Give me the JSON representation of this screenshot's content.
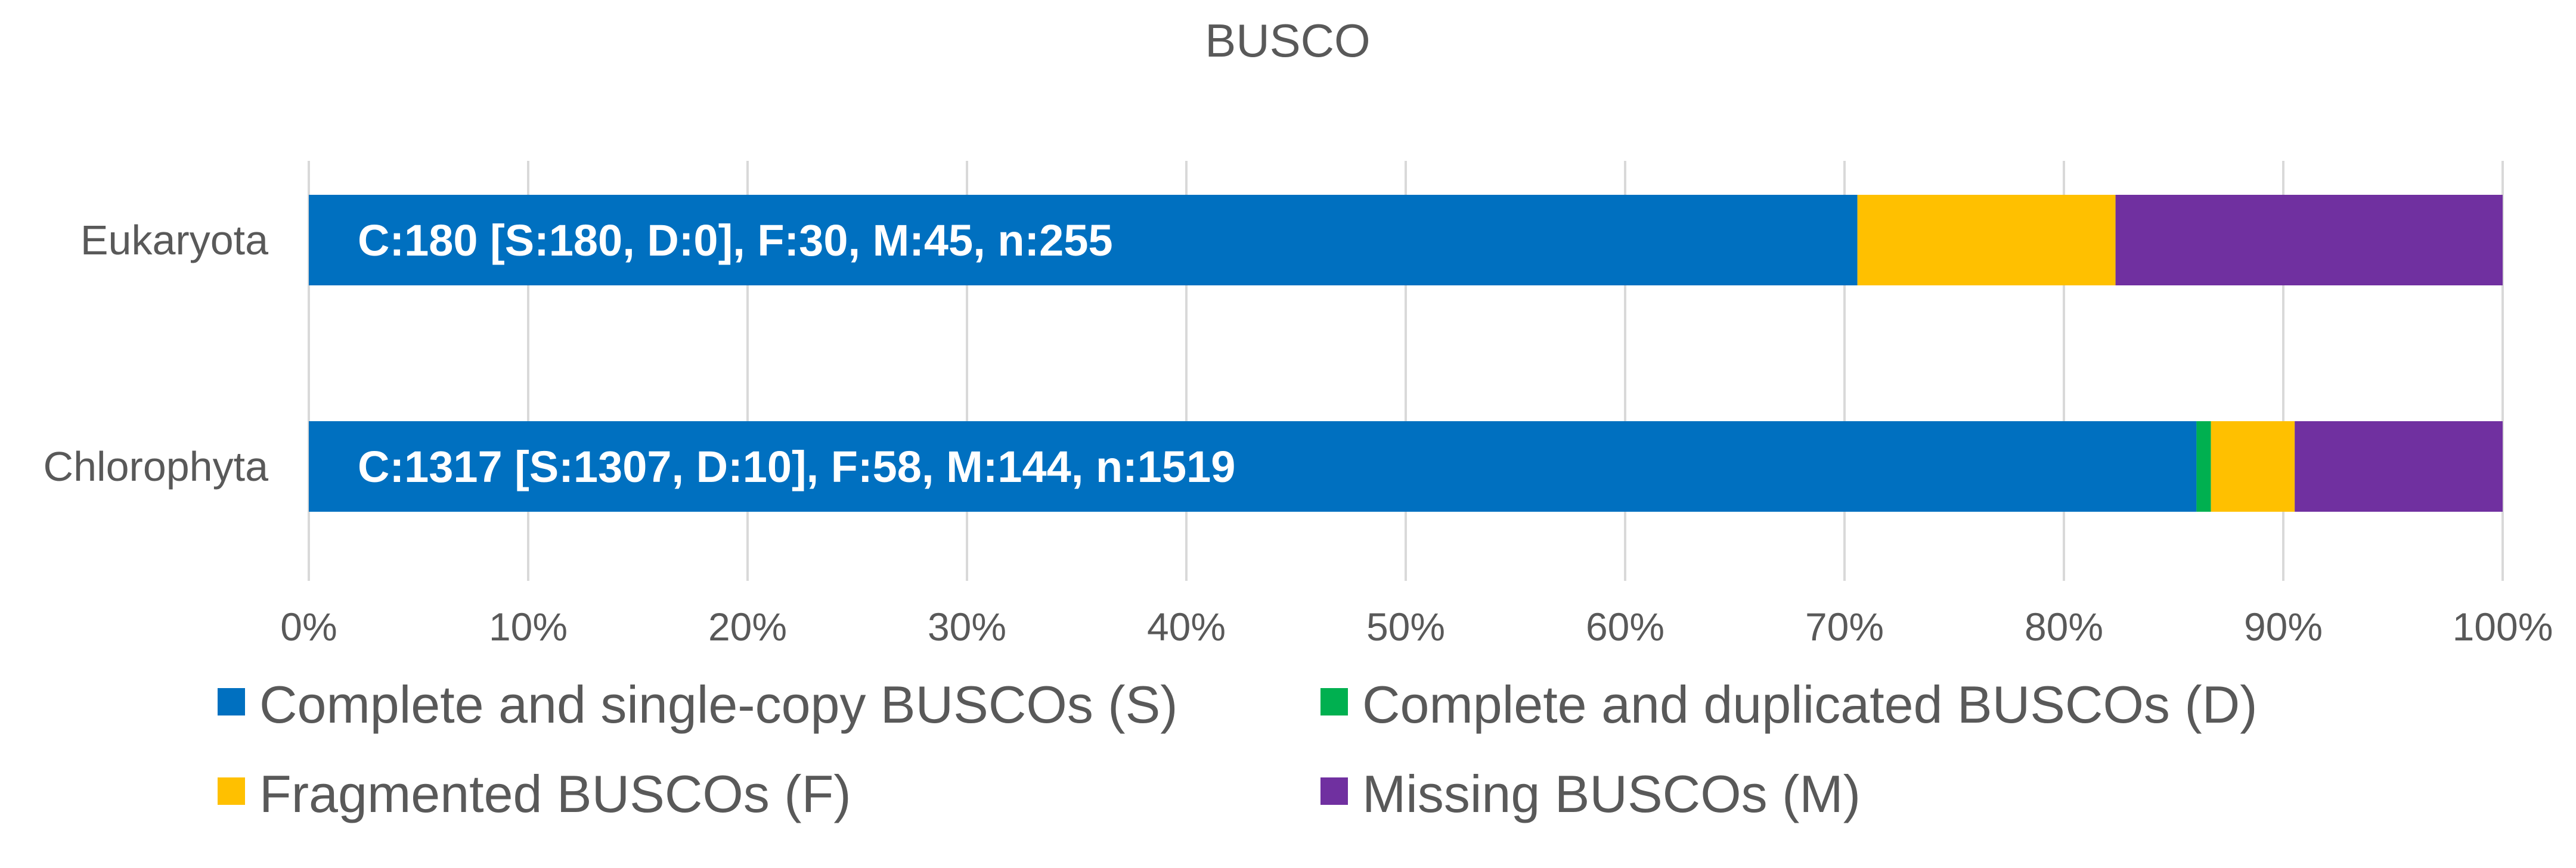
{
  "chart_data": {
    "type": "bar",
    "orientation": "horizontal",
    "stacked": "percent",
    "title": "BUSCO",
    "categories": [
      "Eukaryota",
      "Chlorophyta"
    ],
    "series": [
      {
        "name": "Complete and single-copy BUSCOs (S)",
        "values": [
          180,
          1307
        ],
        "color": "#0070C0"
      },
      {
        "name": "Complete and duplicated BUSCOs (D)",
        "values": [
          0,
          10
        ],
        "color": "#00B050"
      },
      {
        "name": "Fragmented BUSCOs (F)",
        "values": [
          30,
          58
        ],
        "color": "#FFC000"
      },
      {
        "name": "Missing BUSCOs (M)",
        "values": [
          45,
          144
        ],
        "color": "#7030A0"
      }
    ],
    "data_labels": [
      "C:180 [S:180, D:0], F:30, M:45, n:255",
      "C:1317 [S:1307, D:10], F:58, M:144, n:1519"
    ],
    "xlim": [
      0,
      100
    ],
    "x_ticks": [
      "0%",
      "10%",
      "20%",
      "30%",
      "40%",
      "50%",
      "60%",
      "70%",
      "80%",
      "90%",
      "100%"
    ],
    "grid": true,
    "legend_position": "bottom"
  }
}
